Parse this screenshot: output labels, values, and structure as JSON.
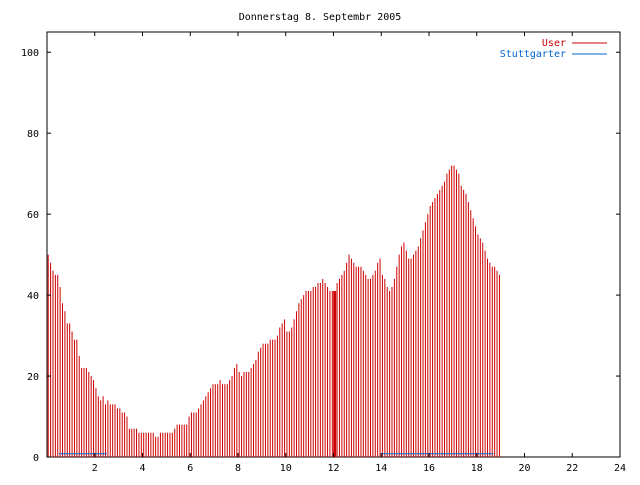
{
  "chart_data": {
    "type": "bar",
    "title": "Donnerstag 8. Septembr 2005",
    "xlabel": "",
    "ylabel": "",
    "xlim": [
      0,
      24
    ],
    "ylim": [
      0,
      105
    ],
    "x_ticks": [
      2,
      4,
      6,
      8,
      10,
      12,
      14,
      16,
      18,
      20,
      22,
      24
    ],
    "y_ticks": [
      0,
      20,
      40,
      60,
      80,
      100
    ],
    "grid": false,
    "legend_position": "top-right",
    "bin_hours": 0.1,
    "series": [
      {
        "name": "User",
        "color": "#cc0000",
        "values": [
          50,
          48,
          46,
          45,
          45,
          42,
          38,
          36,
          33,
          33,
          31,
          29,
          29,
          25,
          22,
          22,
          22,
          21,
          20,
          19,
          17,
          15,
          14,
          15,
          13,
          14,
          13,
          13,
          13,
          12,
          12,
          11,
          11,
          10,
          7,
          7,
          7,
          7,
          6,
          6,
          6,
          6,
          6,
          6,
          6,
          5,
          5,
          6,
          6,
          6,
          6,
          6,
          6,
          7,
          8,
          8,
          8,
          8,
          8,
          10,
          11,
          11,
          11,
          12,
          13,
          14,
          15,
          16,
          17,
          18,
          18,
          18,
          19,
          18,
          18,
          18,
          19,
          20,
          22,
          23,
          21,
          20,
          21,
          21,
          21,
          22,
          23,
          24,
          26,
          27,
          28,
          28,
          28,
          29,
          29,
          29,
          30,
          32,
          33,
          34,
          31,
          31,
          32,
          34,
          36,
          38,
          39,
          40,
          41,
          41,
          41,
          42,
          42,
          43,
          43,
          44,
          43,
          42,
          41,
          41,
          41,
          43,
          44,
          45,
          46,
          48,
          50,
          49,
          48,
          47,
          47,
          47,
          46,
          45,
          44,
          44,
          45,
          46,
          48,
          49,
          45,
          44,
          42,
          41,
          42,
          44,
          47,
          50,
          52,
          53,
          51,
          49,
          49,
          50,
          51,
          52,
          54,
          56,
          58,
          60,
          62,
          63,
          64,
          65,
          66,
          67,
          68,
          70,
          71,
          72,
          72,
          71,
          70,
          67,
          66,
          65,
          63,
          61,
          59,
          57,
          55,
          54,
          53,
          51,
          49,
          48,
          47,
          47,
          46,
          45
        ],
        "highlight_bars": [
          120,
          200
        ]
      },
      {
        "name": "Stuttgarter",
        "color": "#0066cc",
        "segments": [
          [
            0.5,
            2.5
          ],
          [
            14.0,
            18.7
          ]
        ],
        "level": 0.8
      }
    ]
  }
}
